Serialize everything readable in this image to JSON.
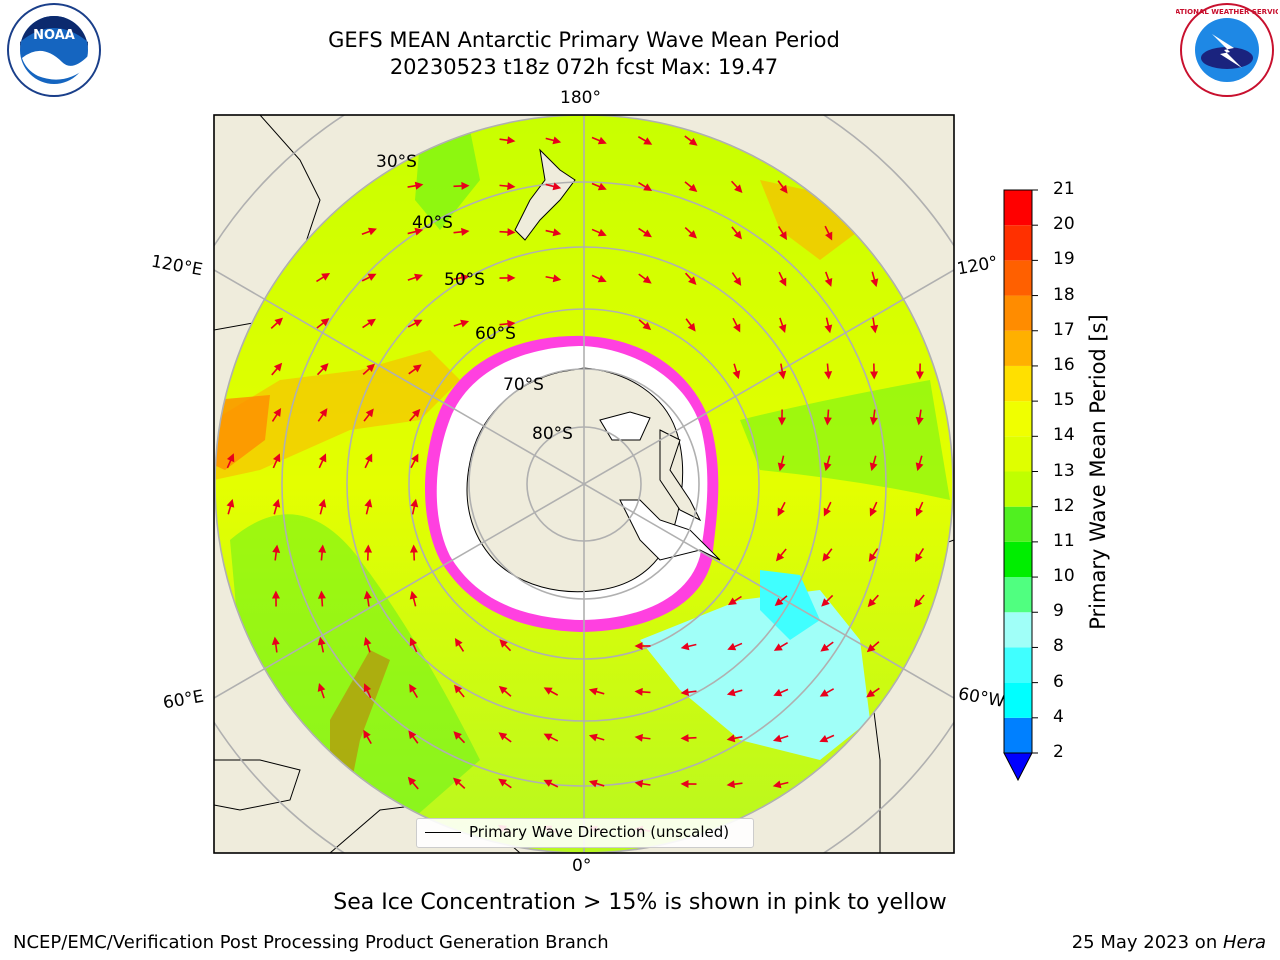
{
  "title_line1": "GEFS MEAN Antarctic Primary Wave Mean Period",
  "title_line2": "20230523 t18z 072h fcst   Max: 19.47",
  "lon_labels": {
    "top": "180°",
    "bottom": "0°",
    "left_upper": "120°E",
    "left_lower": "60°E",
    "right_upper": "120°",
    "right_lower": "60°W"
  },
  "lat_labels": [
    "30°S",
    "40°S",
    "50°S",
    "60°S",
    "70°S",
    "80°S"
  ],
  "legend_label": "Primary Wave Direction (unscaled)",
  "colorbar": {
    "title": "Primary Wave Mean Period [s]",
    "levels": [
      2,
      4,
      6,
      8,
      9,
      10,
      11,
      12,
      13,
      14,
      15,
      16,
      17,
      18,
      19,
      20,
      21
    ],
    "colors": [
      "#0080ff",
      "#00ffff",
      "#40ffff",
      "#a0fff8",
      "#50ff80",
      "#00ee00",
      "#50f020",
      "#c0ff00",
      "#dfff00",
      "#f0ff00",
      "#ffe000",
      "#ffb000",
      "#ff8c00",
      "#ff6000",
      "#ff3000",
      "#ff0000"
    ],
    "under_color": "#0000ff"
  },
  "note": "Sea Ice Concentration > 15% is shown in pink to yellow",
  "footer_left": "NCEP/EMC/Verification Post Processing Product Generation Branch",
  "footer_right_prefix": "25 May 2023 on ",
  "footer_right_machine": "Hera",
  "logos": {
    "left": "NOAA",
    "right": "NATIONAL WEATHER SERVICE"
  }
}
